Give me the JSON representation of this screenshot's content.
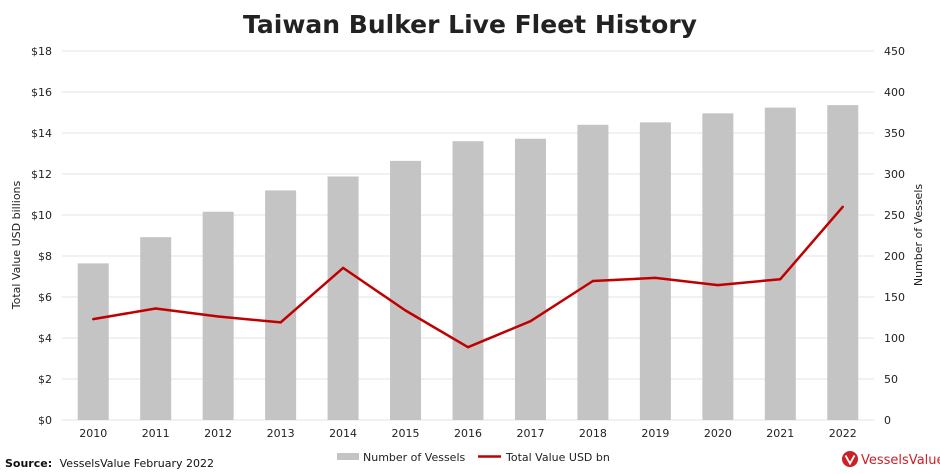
{
  "chart_data": {
    "type": "bar+line",
    "title": "Taiwan Bulker Live Fleet History",
    "categories": [
      "2010",
      "2011",
      "2012",
      "2013",
      "2014",
      "2015",
      "2016",
      "2017",
      "2018",
      "2019",
      "2020",
      "2021",
      "2022"
    ],
    "series": [
      {
        "name": "Number of Vessels",
        "type": "bar",
        "axis": "right",
        "color": "#c4c4c4",
        "values": [
          191,
          223,
          254,
          280,
          297,
          316,
          340,
          343,
          360,
          363,
          374,
          381,
          384
        ]
      },
      {
        "name": "Total Value USD bn",
        "type": "line",
        "axis": "left",
        "color": "#c00000",
        "values": [
          4.92,
          5.44,
          5.05,
          4.76,
          7.42,
          5.34,
          3.55,
          4.82,
          6.78,
          6.93,
          6.58,
          6.87,
          10.4
        ]
      }
    ],
    "y_left": {
      "label": "Total Value USD billions",
      "min": 0,
      "max": 18,
      "ticks": [
        "$0",
        "$2",
        "$4",
        "$6",
        "$8",
        "$10",
        "$12",
        "$14",
        "$16",
        "$18"
      ]
    },
    "y_right": {
      "label": "Number of Vessels",
      "min": 0,
      "max": 450,
      "ticks": [
        "0",
        "50",
        "100",
        "150",
        "200",
        "250",
        "300",
        "350",
        "400",
        "450"
      ]
    },
    "grid": true,
    "legend_position": "bottom"
  },
  "footer": {
    "source_label": "Source:",
    "source_text": "VesselsValue February 2022",
    "brand": "VesselsValue"
  },
  "colors": {
    "brand": "#cc1f26",
    "bar": "#c4c4c4",
    "line": "#c00000",
    "grid": "#e3e3e3"
  }
}
